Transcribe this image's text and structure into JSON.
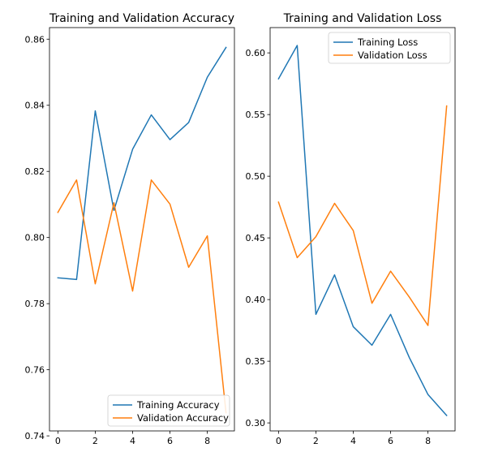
{
  "chart_data": [
    {
      "type": "line",
      "title": "Training and Validation Accuracy",
      "xlabel": "",
      "ylabel": "",
      "x": [
        0,
        1,
        2,
        3,
        4,
        5,
        6,
        7,
        8,
        9
      ],
      "xlim": [
        -0.45,
        9.45
      ],
      "ylim": [
        0.7415,
        0.8635
      ],
      "xticks": [
        0,
        2,
        4,
        6,
        8
      ],
      "yticks": [
        0.74,
        0.76,
        0.78,
        0.8,
        0.82,
        0.84,
        0.86
      ],
      "ytick_labels": [
        "0.74",
        "0.76",
        "0.78",
        "0.80",
        "0.82",
        "0.84",
        "0.86"
      ],
      "legend_position": "lower right",
      "grid": false,
      "series": [
        {
          "name": "Training Accuracy",
          "color": "#1f77b4",
          "values": [
            0.7878,
            0.7873,
            0.8383,
            0.8082,
            0.8267,
            0.8371,
            0.8296,
            0.8348,
            0.8485,
            0.8575
          ]
        },
        {
          "name": "Validation Accuracy",
          "color": "#ff7f0e",
          "values": [
            0.8076,
            0.8174,
            0.786,
            0.8105,
            0.7838,
            0.8174,
            0.8101,
            0.791,
            0.8005,
            0.747
          ]
        }
      ]
    },
    {
      "type": "line",
      "title": "Training and Validation Loss",
      "xlabel": "",
      "ylabel": "",
      "x": [
        0,
        1,
        2,
        3,
        4,
        5,
        6,
        7,
        8,
        9
      ],
      "xlim": [
        -0.45,
        9.45
      ],
      "ylim": [
        0.2935,
        0.6205
      ],
      "xticks": [
        0,
        2,
        4,
        6,
        8
      ],
      "yticks": [
        0.3,
        0.35,
        0.4,
        0.45,
        0.5,
        0.55,
        0.6
      ],
      "ytick_labels": [
        "0.30",
        "0.35",
        "0.40",
        "0.45",
        "0.50",
        "0.55",
        "0.60"
      ],
      "legend_position": "upper right",
      "grid": false,
      "series": [
        {
          "name": "Training Loss",
          "color": "#1f77b4",
          "values": [
            0.579,
            0.606,
            0.388,
            0.42,
            0.378,
            0.363,
            0.388,
            0.353,
            0.323,
            0.306
          ]
        },
        {
          "name": "Validation Loss",
          "color": "#ff7f0e",
          "values": [
            0.479,
            0.434,
            0.451,
            0.478,
            0.456,
            0.397,
            0.423,
            0.402,
            0.379,
            0.557
          ]
        }
      ]
    }
  ]
}
